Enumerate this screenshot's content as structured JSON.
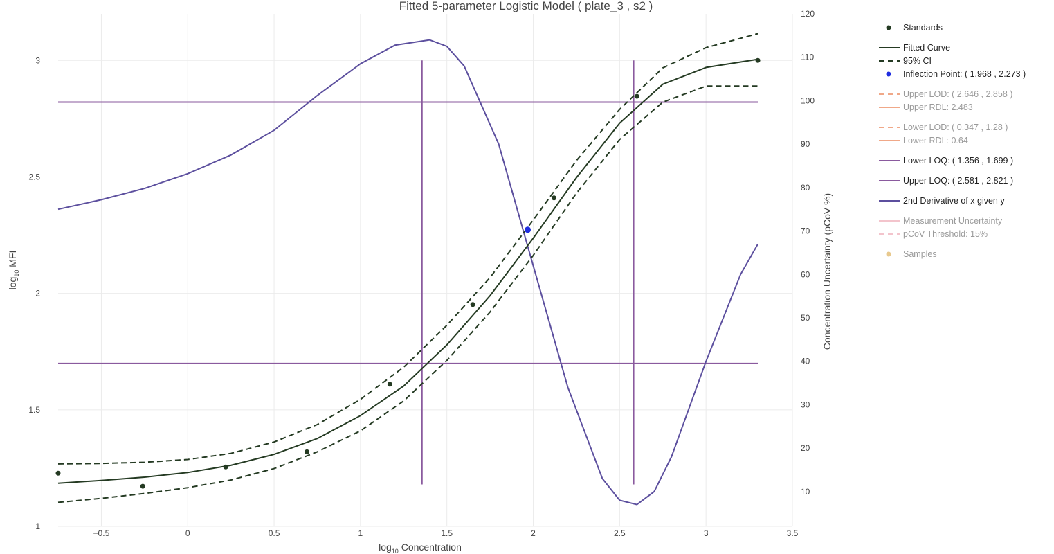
{
  "chart_data": {
    "type": "line",
    "title": "Fitted 5-parameter Logistic Model ( plate_3 , s2 )",
    "xlabel_prefix": "log",
    "xlabel_sub": "10",
    "xlabel_suffix": " Concentration",
    "ylabel_prefix": "log",
    "ylabel_sub": "10",
    "ylabel_suffix": " MFI",
    "y2label": "Concentration Uncertainty (pCoV %)",
    "xlim": [
      -0.75,
      3.5
    ],
    "ylim": [
      1.0,
      3.2
    ],
    "y2lim": [
      2,
      120
    ],
    "xticks": [
      -0.5,
      0,
      0.5,
      1,
      1.5,
      2,
      2.5,
      3,
      3.5
    ],
    "xtick_labels": [
      "−0.5",
      "0",
      "0.5",
      "1",
      "1.5",
      "2",
      "2.5",
      "3",
      "3.5"
    ],
    "yticks": [
      1,
      1.5,
      2,
      2.5,
      3
    ],
    "ytick_labels": [
      "1",
      "1.5",
      "2",
      "2.5",
      "3"
    ],
    "y2ticks": [
      10,
      20,
      30,
      40,
      50,
      60,
      70,
      80,
      90,
      100,
      110,
      120
    ],
    "y2tick_labels": [
      "10",
      "20",
      "30",
      "40",
      "50",
      "60",
      "70",
      "80",
      "90",
      "100",
      "110",
      "120"
    ],
    "grid": true,
    "legend_position": "right",
    "series": [
      {
        "name": "Standards",
        "kind": "scatter",
        "color": "#243a22",
        "x": [
          -0.75,
          -0.26,
          0.22,
          0.69,
          1.17,
          1.65,
          2.12,
          2.6,
          3.3
        ],
        "y": [
          1.228,
          1.172,
          1.255,
          1.32,
          1.61,
          1.952,
          2.41,
          2.846,
          3.0
        ]
      },
      {
        "name": "Fitted Curve",
        "kind": "line",
        "color": "#243a22",
        "x": [
          -0.75,
          -0.5,
          -0.25,
          0.0,
          0.25,
          0.5,
          0.75,
          1.0,
          1.25,
          1.5,
          1.75,
          2.0,
          2.25,
          2.5,
          2.75,
          3.0,
          3.3
        ],
        "y": [
          1.185,
          1.197,
          1.211,
          1.231,
          1.262,
          1.309,
          1.377,
          1.475,
          1.602,
          1.779,
          1.99,
          2.237,
          2.497,
          2.731,
          2.898,
          2.97,
          3.005
        ]
      },
      {
        "name": "95% CI",
        "kind": "line",
        "dash": true,
        "color": "#243a22",
        "x": [
          -0.75,
          -0.5,
          -0.25,
          0.0,
          0.25,
          0.5,
          0.75,
          1.0,
          1.25,
          1.5,
          1.75,
          2.0,
          2.25,
          2.5,
          2.75,
          3.0,
          3.3
        ],
        "y": [
          1.268,
          1.27,
          1.275,
          1.287,
          1.313,
          1.362,
          1.437,
          1.545,
          1.683,
          1.863,
          2.068,
          2.315,
          2.57,
          2.79,
          2.968,
          3.055,
          3.115
        ]
      },
      {
        "name": "95% CI lower",
        "kind": "line",
        "dash": true,
        "color": "#243a22",
        "x": [
          -0.75,
          -0.5,
          -0.25,
          0.0,
          0.25,
          0.5,
          0.75,
          1.0,
          1.25,
          1.5,
          1.75,
          2.0,
          2.25,
          2.5,
          2.75,
          3.0,
          3.3
        ],
        "y": [
          1.103,
          1.12,
          1.141,
          1.166,
          1.199,
          1.248,
          1.32,
          1.41,
          1.538,
          1.712,
          1.92,
          2.163,
          2.43,
          2.661,
          2.821,
          2.89,
          2.89
        ]
      },
      {
        "name": "Inflection Point: ( 1.968 , 2.273 )",
        "kind": "point",
        "color": "#1f2de0",
        "x": [
          1.968
        ],
        "y": [
          2.273
        ]
      },
      {
        "name": "Lower LOQ: ( 1.356 , 1.699 )",
        "kind": "lines",
        "color": "#8a5a9e",
        "hline_y": 1.699,
        "vline_x": 1.356
      },
      {
        "name": "Upper LOQ: ( 2.581 , 2.821 )",
        "kind": "lines",
        "color": "#8a5a9e",
        "hline_y": 2.821,
        "vline_x": 2.581
      },
      {
        "name": "2nd Derivative of x given y",
        "kind": "line",
        "axis": "y2",
        "color": "#5c4f9e",
        "x": [
          -0.75,
          -0.5,
          -0.25,
          0.0,
          0.25,
          0.5,
          0.75,
          1.0,
          1.2,
          1.4,
          1.5,
          1.6,
          1.8,
          2.0,
          2.2,
          2.4,
          2.5,
          2.6,
          2.7,
          2.8,
          3.0,
          3.2,
          3.3
        ],
        "y": [
          75.0,
          77.2,
          79.8,
          83.2,
          87.5,
          93.2,
          101.2,
          108.5,
          112.8,
          114.0,
          112.5,
          108.0,
          90.0,
          62.0,
          34.0,
          13.0,
          8.0,
          7.0,
          10.0,
          18.0,
          40.0,
          60.0,
          67.0
        ]
      }
    ],
    "legend": [
      {
        "label": "Standards",
        "symbol": "dot",
        "color": "#243a22",
        "faded": false
      },
      {
        "label": "Fitted Curve",
        "symbol": "line",
        "color": "#243a22",
        "faded": false
      },
      {
        "label": "95% CI",
        "symbol": "dash",
        "color": "#243a22",
        "faded": false
      },
      {
        "label": "Inflection Point: ( 1.968 , 2.273 )",
        "symbol": "dot",
        "color": "#1f2de0",
        "faded": false
      },
      {
        "label": "Upper LOD: ( 2.646 , 2.858 )",
        "symbol": "dash",
        "color": "#f0a888",
        "faded": true
      },
      {
        "label": "Upper RDL: 2.483",
        "symbol": "line",
        "color": "#f0a888",
        "faded": true
      },
      {
        "label": "Lower LOD: ( 0.347 , 1.28 )",
        "symbol": "dash",
        "color": "#f0a888",
        "faded": true
      },
      {
        "label": "Lower RDL: 0.64",
        "symbol": "line",
        "color": "#f0a888",
        "faded": true
      },
      {
        "label": "Lower LOQ: ( 1.356 , 1.699 )",
        "symbol": "line",
        "color": "#8a5a9e",
        "faded": false
      },
      {
        "label": "Upper LOQ: ( 2.581 , 2.821 )",
        "symbol": "line",
        "color": "#8a5a9e",
        "faded": false
      },
      {
        "label": "2nd Derivative of x given y",
        "symbol": "line",
        "color": "#5c4f9e",
        "faded": false
      },
      {
        "label": "Measurement Uncertainty",
        "symbol": "line",
        "color": "#f3c4cc",
        "faded": true
      },
      {
        "label": "pCoV Threshold: 15%",
        "symbol": "dash",
        "color": "#f3c4cc",
        "faded": true
      },
      {
        "label": "Samples",
        "symbol": "dot",
        "color": "#e8c98e",
        "faded": true
      }
    ]
  }
}
